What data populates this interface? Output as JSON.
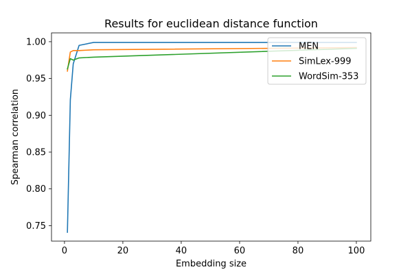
{
  "chart_data": {
    "type": "line",
    "title": "Results for euclidean distance function",
    "xlabel": "Embedding size",
    "ylabel": "Spearman correlation",
    "xlim": [
      -4.45,
      104.95
    ],
    "ylim": [
      0.729,
      1.012
    ],
    "xticks": [
      0,
      20,
      40,
      60,
      80,
      100
    ],
    "xtick_labels": [
      "0",
      "20",
      "40",
      "60",
      "80",
      "100"
    ],
    "yticks": [
      0.75,
      0.8,
      0.85,
      0.9,
      0.95,
      1.0
    ],
    "ytick_labels": [
      "0.75",
      "0.80",
      "0.85",
      "0.90",
      "0.95",
      "1.00"
    ],
    "grid": false,
    "legend_position": "top-right",
    "series": [
      {
        "name": "MEN",
        "color": "#1f77b4",
        "x": [
          1,
          2,
          3,
          5,
          10,
          100
        ],
        "y": [
          0.741,
          0.921,
          0.97,
          0.995,
          0.999,
          0.999
        ]
      },
      {
        "name": "SimLex-999",
        "color": "#ff7f0e",
        "x": [
          1,
          2,
          3,
          5,
          10,
          100
        ],
        "y": [
          0.96,
          0.986,
          0.988,
          0.988,
          0.989,
          0.992
        ]
      },
      {
        "name": "WordSim-353",
        "color": "#2ca02c",
        "x": [
          1,
          2,
          3,
          5,
          10,
          100
        ],
        "y": [
          0.963,
          0.977,
          0.975,
          0.978,
          0.979,
          0.991
        ]
      }
    ]
  }
}
